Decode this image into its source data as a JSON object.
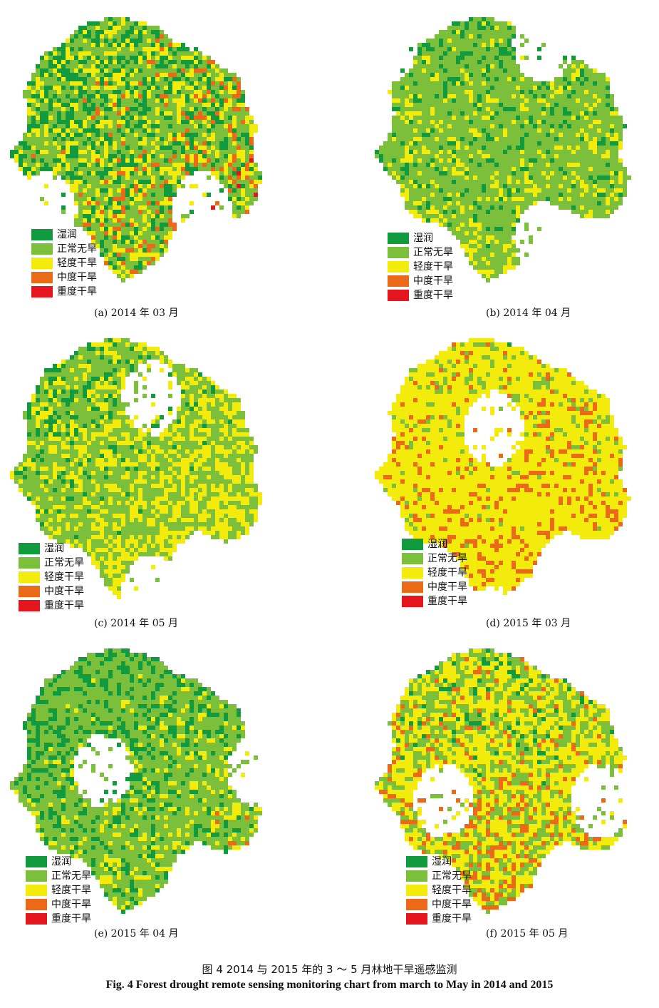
{
  "legend": {
    "items": [
      {
        "label": "湿润",
        "color": "#129a3f"
      },
      {
        "label": "正常无旱",
        "color": "#7bbf3a"
      },
      {
        "label": "轻度干旱",
        "color": "#f2eb0c"
      },
      {
        "label": "中度干旱",
        "color": "#ea6a18"
      },
      {
        "label": "重度干旱",
        "color": "#e4151c"
      }
    ]
  },
  "panels": [
    {
      "caption": "(a) 2014 年 03 月",
      "composition": [
        0.3,
        0.3,
        0.18,
        0.12,
        0.1
      ],
      "legend_position": "bottom-left"
    },
    {
      "caption": "(b) 2014 年 04 月",
      "composition": [
        0.15,
        0.5,
        0.3,
        0.04,
        0.01
      ],
      "legend_position": "bottom-left"
    },
    {
      "caption": "(c) 2014 年 05 月",
      "composition": [
        0.18,
        0.4,
        0.38,
        0.03,
        0.01
      ],
      "legend_position": "bottom-left"
    },
    {
      "caption": "(d) 2015 年 03 月",
      "composition": [
        0.02,
        0.1,
        0.55,
        0.23,
        0.1
      ],
      "legend_position": "bottom-left"
    },
    {
      "caption": "(e) 2015 年 04 月",
      "composition": [
        0.3,
        0.45,
        0.15,
        0.06,
        0.04
      ],
      "legend_position": "bottom-left"
    },
    {
      "caption": "(f) 2015 年 05 月",
      "composition": [
        0.08,
        0.25,
        0.35,
        0.2,
        0.12
      ],
      "legend_position": "bottom-left"
    }
  ],
  "figure": {
    "title_cn": "图 4    2014 与 2015 年的 3 ～ 5 月林地干旱遥感监测",
    "title_en": "Fig. 4    Forest drought remote sensing monitoring chart from march to May in 2014 and 2015"
  }
}
